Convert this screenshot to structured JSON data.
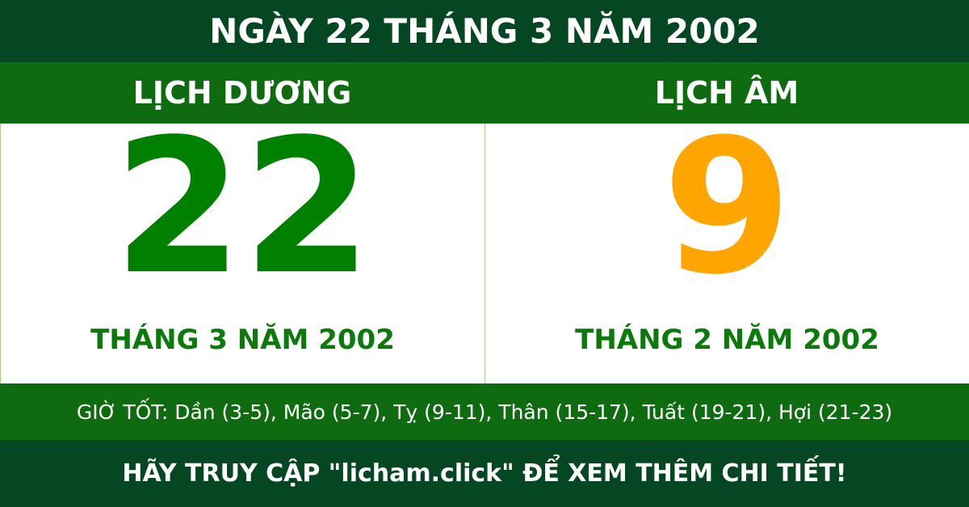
{
  "title": "NGÀY 22 THÁNG 3 NĂM 2002",
  "solar": {
    "label": "LỊCH DƯƠNG",
    "day": "22",
    "month_year": "THÁNG 3 NĂM 2002"
  },
  "lunar": {
    "label": "LỊCH ÂM",
    "day": "9",
    "month_year": "THÁNG 2 NĂM 2002"
  },
  "good_hours": "GIỜ TỐT: Dần (3-5), Mão (5-7), Tỵ (9-11), Thân (15-17), Tuất (19-21), Hợi (21-23)",
  "footer": "HÃY TRUY CẬP \"licham.click\" ĐỂ XEM THÊM CHI TIẾT!",
  "colors": {
    "dark_green": "#044722",
    "green": "#0f6b10",
    "solar_day": "#008000",
    "lunar_day": "#ffa500"
  }
}
